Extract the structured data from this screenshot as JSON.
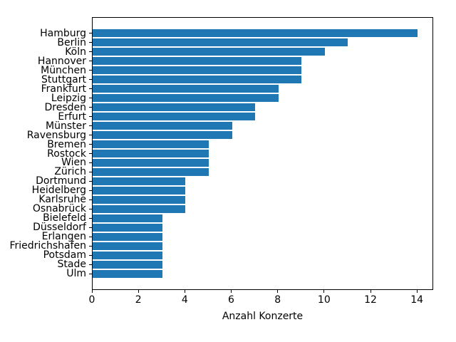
{
  "chart_data": {
    "type": "bar",
    "orientation": "horizontal",
    "title": "",
    "xlabel": "Anzahl Konzerte",
    "ylabel": "",
    "categories": [
      "Hamburg",
      "Berlin",
      "Köln",
      "Hannover",
      "München",
      "Stuttgart",
      "Frankfurt",
      "Leipzig",
      "Dresden",
      "Erfurt",
      "Münster",
      "Ravensburg",
      "Bremen",
      "Rostock",
      "Wien",
      "Zürich",
      "Dortmund",
      "Heidelberg",
      "Karlsruhe",
      "Osnabrück",
      "Bielefeld",
      "Düsseldorf",
      "Erlangen",
      "Friedrichshafen",
      "Potsdam",
      "Stade",
      "Ulm"
    ],
    "values": [
      14,
      11,
      10,
      9,
      9,
      9,
      8,
      8,
      7,
      7,
      6,
      6,
      5,
      5,
      5,
      5,
      4,
      4,
      4,
      4,
      3,
      3,
      3,
      3,
      3,
      3,
      3
    ],
    "xticks": [
      0,
      2,
      4,
      6,
      8,
      10,
      12,
      14
    ],
    "xlim": [
      0,
      14.7
    ],
    "grid": false,
    "legend": null,
    "bar_color": "#1f77b4",
    "text_color": "#000000",
    "spine_color": "#000000"
  }
}
